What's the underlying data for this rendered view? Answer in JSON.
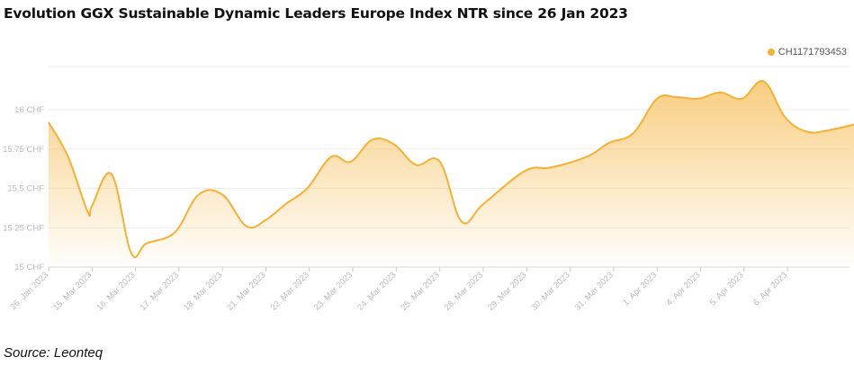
{
  "title": "Evolution GGX Sustainable Dynamic Leaders Europe Index NTR since 26 Jan 2023",
  "source": "Source: Leonteq",
  "colors": {
    "line": "#f5b133",
    "fill_top": "#f7c56a",
    "grid": "#eeeeee",
    "axis_text": "#bbbbbb"
  },
  "chart_data": {
    "type": "area",
    "title": "Evolution GGX Sustainable Dynamic Leaders Europe Index NTR since 26 Jan 2023",
    "xlabel": "",
    "ylabel": "",
    "legend": {
      "position": "top-right",
      "entries": [
        "CH1171793453"
      ]
    },
    "grid": true,
    "ylim": [
      15,
      16.3
    ],
    "y_ticks": [
      15,
      15.25,
      15.5,
      15.75,
      16
    ],
    "y_tick_labels": [
      "15 CHF",
      "15.25 CHF",
      "15.5 CHF",
      "15.75 CHF",
      "16 CHF"
    ],
    "categories": [
      "26. Jan 2023",
      "15. Mar 2023",
      "16. Mar 2023",
      "17. Mar 2023",
      "18. Mar 2023",
      "21. Mar 2023",
      "22. Mar 2023",
      "23. Mar 2023",
      "24. Mar 2023",
      "25. Mar 2023",
      "28. Mar 2023",
      "29. Mar 2023",
      "30. Mar 2023",
      "31. Mar 2023",
      "1. Apr 2023",
      "4. Apr 2023",
      "5. Apr 2023",
      "6. Apr 2023"
    ],
    "series": [
      {
        "name": "CH1171793453",
        "x": [
          0,
          0.45,
          0.9,
          1.0,
          1.45,
          1.9,
          2.25,
          2.9,
          3.45,
          4.0,
          4.55,
          5.0,
          5.45,
          5.95,
          6.5,
          6.95,
          7.45,
          7.95,
          8.45,
          9.0,
          9.5,
          10.0,
          10.95,
          11.5,
          11.95,
          12.45,
          12.9,
          13.45,
          14.0,
          14.45,
          14.95,
          15.45,
          15.95,
          16.45,
          16.95,
          17.45,
          17.95,
          18.75
        ],
        "values": [
          15.92,
          15.7,
          15.35,
          15.39,
          15.59,
          15.09,
          15.15,
          15.22,
          15.46,
          15.46,
          15.26,
          15.3,
          15.4,
          15.5,
          15.7,
          15.67,
          15.81,
          15.78,
          15.65,
          15.67,
          15.29,
          15.4,
          15.61,
          15.63,
          15.66,
          15.71,
          15.79,
          15.85,
          16.07,
          16.08,
          16.07,
          16.11,
          16.07,
          16.18,
          15.95,
          15.86,
          15.87,
          15.92
        ]
      }
    ]
  }
}
